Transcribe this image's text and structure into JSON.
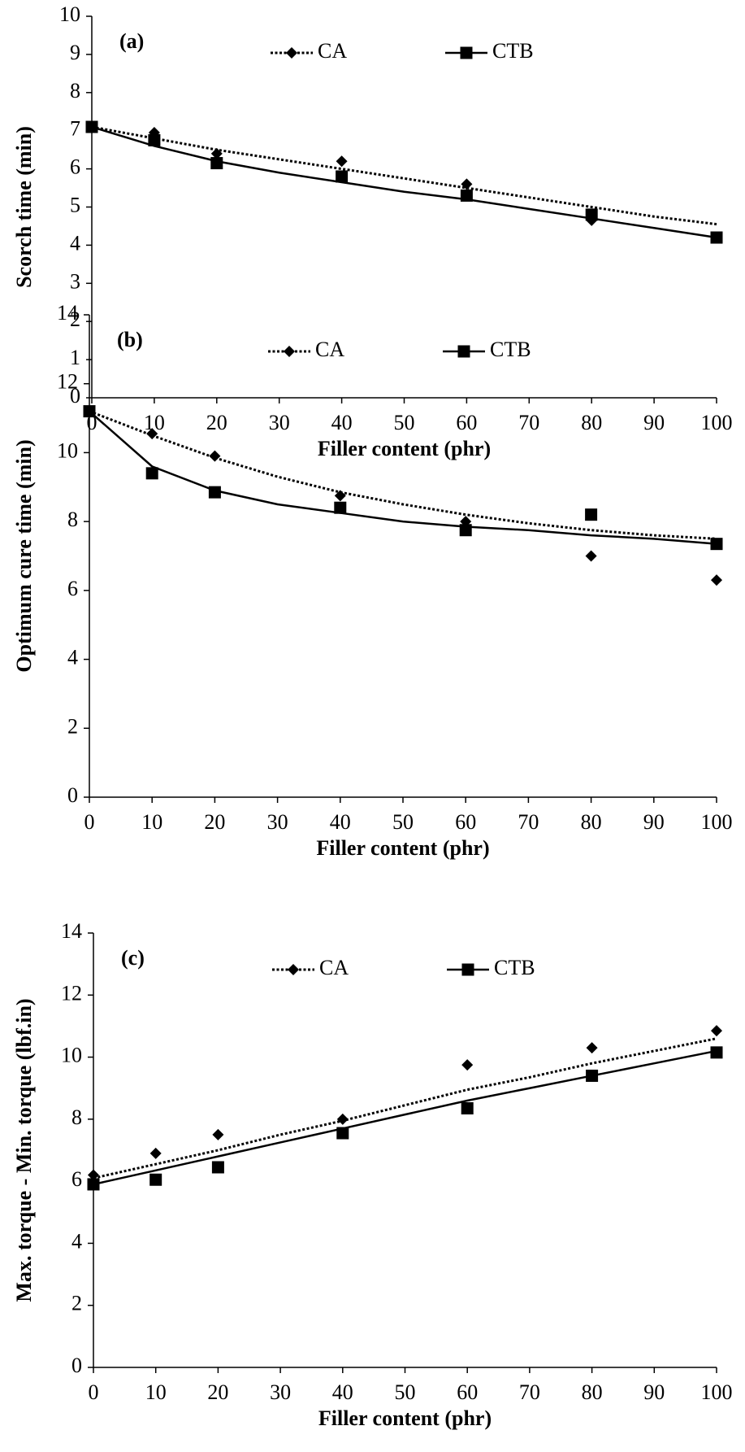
{
  "chart_data": [
    {
      "type": "scatter",
      "panel_label": "(a)",
      "x_label": "Filler content (phr)",
      "y_label": "Scorch time (min)",
      "xlim": [
        0,
        100
      ],
      "xticks": [
        0,
        10,
        20,
        30,
        40,
        50,
        60,
        70,
        80,
        90,
        100
      ],
      "ylim": [
        0,
        10
      ],
      "yticks": [
        0,
        1,
        2,
        3,
        4,
        5,
        6,
        7,
        8,
        9,
        10
      ],
      "grid": false,
      "legend": "top",
      "trend_x": [
        0,
        10,
        20,
        30,
        40,
        50,
        60,
        70,
        80,
        90,
        100
      ],
      "series": [
        {
          "name": "CA",
          "color": "#000000",
          "marker": "diamond",
          "line_style": "dotted",
          "x": [
            0,
            10,
            20,
            40,
            60,
            80
          ],
          "values": [
            7.1,
            6.95,
            6.4,
            6.2,
            5.6,
            4.65
          ],
          "trend": [
            7.1,
            6.8,
            6.5,
            6.25,
            6.0,
            5.75,
            5.5,
            5.25,
            5.0,
            4.75,
            4.55
          ]
        },
        {
          "name": "CTB",
          "color": "#000000",
          "marker": "square",
          "line_style": "solid",
          "x": [
            0,
            10,
            20,
            40,
            60,
            80,
            100
          ],
          "values": [
            7.1,
            6.75,
            6.15,
            5.8,
            5.3,
            4.8,
            4.2
          ],
          "trend": [
            7.1,
            6.6,
            6.2,
            5.9,
            5.65,
            5.4,
            5.2,
            4.95,
            4.7,
            4.45,
            4.2
          ]
        }
      ]
    },
    {
      "type": "scatter",
      "panel_label": "(b)",
      "x_label": "Filler content (phr)",
      "y_label": "Optimum cure time (min)",
      "xlim": [
        0,
        100
      ],
      "xticks": [
        0,
        10,
        20,
        30,
        40,
        50,
        60,
        70,
        80,
        90,
        100
      ],
      "ylim": [
        0,
        14
      ],
      "yticks": [
        0,
        2,
        4,
        6,
        8,
        10,
        12,
        14
      ],
      "grid": false,
      "legend": "top",
      "trend_x": [
        0,
        10,
        20,
        30,
        40,
        50,
        60,
        70,
        80,
        90,
        100
      ],
      "series": [
        {
          "name": "CA",
          "color": "#000000",
          "marker": "diamond",
          "line_style": "dotted",
          "x": [
            0,
            10,
            20,
            40,
            60,
            80,
            100
          ],
          "values": [
            11.2,
            10.55,
            9.9,
            8.75,
            8.0,
            7.0,
            6.3
          ],
          "trend": [
            11.2,
            10.5,
            9.85,
            9.3,
            8.85,
            8.5,
            8.2,
            7.95,
            7.75,
            7.6,
            7.5
          ]
        },
        {
          "name": "CTB",
          "color": "#000000",
          "marker": "square",
          "line_style": "solid",
          "x": [
            0,
            10,
            20,
            40,
            60,
            80,
            100
          ],
          "values": [
            11.2,
            9.4,
            8.85,
            8.4,
            7.75,
            8.2,
            7.35
          ],
          "trend": [
            11.2,
            9.6,
            8.9,
            8.5,
            8.25,
            8.0,
            7.85,
            7.75,
            7.6,
            7.5,
            7.35
          ]
        }
      ]
    },
    {
      "type": "scatter",
      "panel_label": "(c)",
      "x_label": "Filler content (phr)",
      "y_label": "Max. torque - Min. torque (lbf.in)",
      "xlim": [
        0,
        100
      ],
      "xticks": [
        0,
        10,
        20,
        30,
        40,
        50,
        60,
        70,
        80,
        90,
        100
      ],
      "ylim": [
        0,
        14
      ],
      "yticks": [
        0,
        2,
        4,
        6,
        8,
        10,
        12,
        14
      ],
      "grid": false,
      "legend": "top",
      "trend_x": [
        0,
        10,
        20,
        30,
        40,
        50,
        60,
        70,
        80,
        90,
        100
      ],
      "series": [
        {
          "name": "CA",
          "color": "#000000",
          "marker": "diamond",
          "line_style": "dotted",
          "x": [
            0,
            10,
            20,
            40,
            60,
            80,
            100
          ],
          "values": [
            6.2,
            6.9,
            7.5,
            8.0,
            9.75,
            10.3,
            10.85
          ],
          "trend": [
            6.1,
            6.55,
            7.0,
            7.5,
            7.95,
            8.45,
            8.95,
            9.35,
            9.8,
            10.2,
            10.6
          ]
        },
        {
          "name": "CTB",
          "color": "#000000",
          "marker": "square",
          "line_style": "solid",
          "x": [
            0,
            10,
            20,
            40,
            60,
            80,
            100
          ],
          "values": [
            5.9,
            6.05,
            6.45,
            7.55,
            8.35,
            9.4,
            10.15
          ],
          "trend": [
            5.9,
            6.35,
            6.8,
            7.25,
            7.7,
            8.15,
            8.6,
            9.0,
            9.4,
            9.8,
            10.2
          ]
        }
      ]
    }
  ]
}
